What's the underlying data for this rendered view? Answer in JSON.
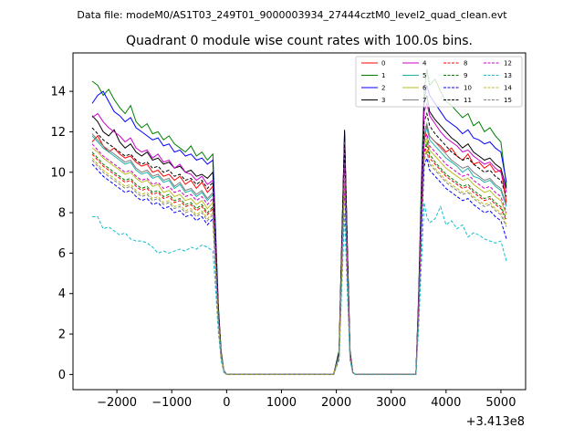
{
  "chart_data": {
    "type": "line",
    "suptitle": "Data file: modeM0/AS1T03_249T01_9000003934_27444cztM0_level2_quad_clean.evt",
    "title": "Quadrant 0 module wise count rates with 100.0s bins.",
    "xlabel": "",
    "ylabel": "",
    "x_offset_label": "+3.413e8",
    "xlim": [
      -2800,
      5450
    ],
    "ylim": [
      -0.75,
      15.9
    ],
    "x_ticks": [
      -2000,
      -1000,
      0,
      1000,
      2000,
      3000,
      4000,
      5000
    ],
    "x_tick_labels": [
      "−2000",
      "−1000",
      "0",
      "1000",
      "2000",
      "3000",
      "4000",
      "5000"
    ],
    "y_ticks": [
      0,
      2,
      4,
      6,
      8,
      10,
      12,
      14
    ],
    "y_tick_labels": [
      "0",
      "2",
      "4",
      "6",
      "8",
      "10",
      "12",
      "14"
    ],
    "legend_position": "upper-right",
    "x": [
      -2450,
      -2350,
      -2250,
      -2150,
      -2050,
      -1950,
      -1850,
      -1750,
      -1650,
      -1550,
      -1450,
      -1350,
      -1250,
      -1150,
      -1050,
      -950,
      -850,
      -750,
      -650,
      -550,
      -450,
      -350,
      -250,
      -200,
      -150,
      -100,
      -50,
      0,
      1950,
      2050,
      2100,
      2150,
      2200,
      2250,
      2300,
      2350,
      3450,
      3500,
      3550,
      3600,
      3650,
      3700,
      3800,
      3900,
      4000,
      4100,
      4200,
      4300,
      4400,
      4500,
      4600,
      4700,
      4800,
      4900,
      5000,
      5100
    ],
    "series": [
      {
        "name": "0",
        "color": "#ff0000",
        "dash": "solid",
        "values": [
          11.5,
          11.8,
          11.3,
          11.0,
          11.2,
          10.9,
          10.7,
          10.8,
          10.5,
          10.3,
          10.4,
          10.0,
          10.1,
          9.8,
          9.9,
          9.6,
          9.8,
          9.4,
          9.6,
          9.2,
          9.5,
          9.0,
          9.3,
          6.0,
          3.0,
          1.0,
          0.2,
          0.0,
          0.0,
          1.0,
          6.0,
          11.2,
          6.0,
          1.0,
          0.1,
          0.0,
          0.0,
          3.5,
          8.0,
          11.5,
          12.3,
          11.8,
          11.5,
          11.3,
          11.0,
          11.2,
          10.8,
          10.6,
          10.9,
          10.4,
          10.5,
          10.2,
          10.4,
          10.0,
          10.1,
          8.5
        ]
      },
      {
        "name": "1",
        "color": "#008000",
        "dash": "solid",
        "values": [
          14.5,
          14.3,
          13.8,
          14.1,
          13.6,
          13.2,
          12.9,
          13.3,
          12.5,
          12.2,
          12.4,
          11.9,
          12.0,
          11.6,
          11.8,
          11.4,
          11.2,
          11.0,
          11.3,
          10.8,
          11.0,
          10.6,
          10.9,
          7.0,
          3.4,
          1.2,
          0.2,
          0.0,
          0.0,
          1.2,
          6.8,
          11.8,
          6.5,
          1.2,
          0.1,
          0.0,
          0.0,
          4.0,
          9.5,
          14.0,
          15.1,
          14.3,
          14.6,
          14.0,
          13.5,
          13.3,
          13.0,
          12.7,
          12.9,
          12.3,
          12.5,
          12.0,
          12.2,
          11.8,
          11.5,
          9.3
        ]
      },
      {
        "name": "2",
        "color": "#0000ff",
        "dash": "solid",
        "values": [
          13.4,
          13.8,
          14.0,
          13.5,
          13.0,
          12.8,
          12.5,
          12.7,
          12.2,
          12.0,
          11.8,
          11.6,
          11.7,
          11.3,
          11.4,
          11.0,
          11.1,
          10.8,
          10.9,
          10.6,
          10.7,
          10.4,
          10.6,
          7.0,
          3.3,
          1.1,
          0.2,
          0.0,
          0.0,
          1.1,
          6.5,
          12.0,
          6.3,
          1.1,
          0.1,
          0.0,
          0.0,
          3.8,
          9.0,
          13.6,
          14.3,
          13.8,
          13.4,
          13.0,
          12.6,
          12.4,
          12.2,
          11.9,
          12.1,
          11.7,
          11.6,
          11.4,
          11.5,
          11.2,
          11.0,
          9.5
        ]
      },
      {
        "name": "3",
        "color": "#000000",
        "dash": "solid",
        "values": [
          12.8,
          12.5,
          12.0,
          11.8,
          12.1,
          11.5,
          11.2,
          11.4,
          11.0,
          10.8,
          11.0,
          10.6,
          10.7,
          10.4,
          10.5,
          10.2,
          10.3,
          10.0,
          10.1,
          9.8,
          9.9,
          9.7,
          10.0,
          6.5,
          3.2,
          1.0,
          0.2,
          0.0,
          0.0,
          1.1,
          6.6,
          12.1,
          6.4,
          1.1,
          0.1,
          0.0,
          0.0,
          3.7,
          8.8,
          13.4,
          13.8,
          13.0,
          12.6,
          12.3,
          12.0,
          11.7,
          11.5,
          11.2,
          11.4,
          11.0,
          10.8,
          10.6,
          10.7,
          10.4,
          10.2,
          9.2
        ]
      },
      {
        "name": "4",
        "color": "#cc00cc",
        "dash": "solid",
        "values": [
          12.7,
          12.9,
          12.5,
          12.2,
          12.0,
          11.8,
          11.5,
          11.7,
          11.2,
          11.0,
          11.1,
          10.7,
          10.9,
          10.5,
          10.6,
          10.2,
          10.4,
          10.0,
          9.9,
          9.6,
          9.8,
          9.4,
          9.6,
          6.3,
          3.1,
          1.0,
          0.2,
          0.0,
          0.0,
          1.0,
          6.2,
          11.5,
          6.0,
          1.0,
          0.1,
          0.0,
          0.0,
          3.6,
          8.6,
          13.0,
          13.4,
          12.8,
          12.4,
          12.0,
          11.7,
          11.5,
          11.3,
          11.0,
          11.1,
          10.8,
          10.6,
          10.4,
          10.5,
          10.2,
          10.0,
          9.0
        ]
      },
      {
        "name": "5",
        "color": "#20b2aa",
        "dash": "solid",
        "values": [
          11.8,
          11.5,
          11.2,
          11.0,
          10.8,
          10.6,
          10.4,
          10.5,
          10.1,
          9.9,
          10.0,
          9.7,
          9.8,
          9.5,
          9.6,
          9.2,
          9.4,
          9.0,
          9.1,
          8.8,
          9.0,
          8.6,
          8.9,
          5.9,
          2.9,
          0.9,
          0.2,
          0.0,
          0.0,
          0.9,
          5.8,
          10.8,
          5.7,
          0.9,
          0.1,
          0.0,
          0.0,
          3.3,
          7.9,
          11.8,
          12.2,
          11.6,
          11.3,
          11.0,
          10.7,
          10.5,
          10.3,
          10.0,
          10.2,
          9.8,
          9.7,
          9.5,
          9.6,
          9.3,
          9.1,
          8.3
        ]
      },
      {
        "name": "6",
        "color": "#bcbd22",
        "dash": "solid",
        "values": [
          11.2,
          11.0,
          10.7,
          10.5,
          10.3,
          10.1,
          9.9,
          10.0,
          9.7,
          9.5,
          9.6,
          9.3,
          9.4,
          9.0,
          9.1,
          8.8,
          8.9,
          8.6,
          8.7,
          8.4,
          8.6,
          8.2,
          8.5,
          5.6,
          2.8,
          0.9,
          0.2,
          0.0,
          0.0,
          0.9,
          5.5,
          10.4,
          5.4,
          0.9,
          0.1,
          0.0,
          0.0,
          3.2,
          7.6,
          11.3,
          11.7,
          11.1,
          10.8,
          10.5,
          10.2,
          10.0,
          9.8,
          9.6,
          9.7,
          9.4,
          9.2,
          9.0,
          9.1,
          8.8,
          8.6,
          7.9
        ]
      },
      {
        "name": "7",
        "color": "#7f7f7f",
        "dash": "solid",
        "values": [
          11.9,
          11.6,
          11.3,
          11.1,
          10.9,
          10.7,
          10.5,
          10.6,
          10.2,
          10.0,
          10.1,
          9.8,
          9.9,
          9.6,
          9.7,
          9.3,
          9.5,
          9.1,
          9.2,
          8.9,
          9.1,
          8.7,
          9.0,
          6.0,
          3.0,
          1.0,
          0.2,
          0.0,
          0.0,
          1.0,
          5.9,
          11.0,
          5.8,
          1.0,
          0.1,
          0.0,
          0.0,
          3.4,
          8.0,
          12.0,
          12.4,
          11.8,
          11.5,
          11.2,
          10.9,
          10.6,
          10.4,
          10.2,
          10.3,
          10.0,
          9.8,
          9.6,
          9.7,
          9.4,
          9.2,
          8.4
        ]
      },
      {
        "name": "8",
        "color": "#ff0000",
        "dash": "dashed",
        "values": [
          10.9,
          10.6,
          10.3,
          10.1,
          9.9,
          9.7,
          9.5,
          9.6,
          9.3,
          9.1,
          9.2,
          8.9,
          9.0,
          8.7,
          8.8,
          8.5,
          8.6,
          8.3,
          8.4,
          8.1,
          8.3,
          7.9,
          8.2,
          5.4,
          2.7,
          0.9,
          0.2,
          0.0,
          0.0,
          0.9,
          5.3,
          10.0,
          5.2,
          0.9,
          0.1,
          0.0,
          0.0,
          3.1,
          7.3,
          10.9,
          11.3,
          10.7,
          10.4,
          10.1,
          9.8,
          9.6,
          9.4,
          9.2,
          9.3,
          9.0,
          8.8,
          8.6,
          8.7,
          8.4,
          8.2,
          7.6
        ]
      },
      {
        "name": "9",
        "color": "#008000",
        "dash": "dashed",
        "values": [
          11.0,
          10.7,
          10.4,
          10.2,
          10.0,
          9.8,
          9.6,
          9.7,
          9.4,
          9.2,
          9.3,
          9.0,
          9.1,
          8.8,
          8.9,
          8.6,
          8.7,
          8.4,
          8.5,
          8.2,
          8.4,
          8.0,
          8.3,
          5.5,
          2.7,
          0.9,
          0.2,
          0.0,
          0.0,
          0.9,
          5.4,
          10.2,
          5.3,
          0.9,
          0.1,
          0.0,
          0.0,
          3.1,
          7.4,
          11.0,
          11.5,
          10.9,
          10.5,
          10.2,
          9.9,
          9.7,
          9.5,
          9.3,
          9.4,
          9.1,
          8.9,
          8.7,
          8.8,
          8.5,
          8.3,
          7.7
        ]
      },
      {
        "name": "10",
        "color": "#0000ff",
        "dash": "dashed",
        "values": [
          10.4,
          10.1,
          9.8,
          9.6,
          9.4,
          9.2,
          9.0,
          9.1,
          8.8,
          8.6,
          8.7,
          8.4,
          8.5,
          8.2,
          8.3,
          8.0,
          8.1,
          7.8,
          7.9,
          7.6,
          7.8,
          7.4,
          7.7,
          5.1,
          2.5,
          0.8,
          0.2,
          0.0,
          0.0,
          0.8,
          5.0,
          9.5,
          4.9,
          0.8,
          0.1,
          0.0,
          0.0,
          2.9,
          6.9,
          10.3,
          10.7,
          10.1,
          9.8,
          9.5,
          9.2,
          9.0,
          8.8,
          8.6,
          8.7,
          8.4,
          8.2,
          8.0,
          8.1,
          7.8,
          7.6,
          6.7
        ]
      },
      {
        "name": "11",
        "color": "#000000",
        "dash": "dashed",
        "values": [
          12.2,
          11.9,
          11.6,
          11.4,
          11.2,
          11.0,
          10.8,
          10.9,
          10.6,
          10.4,
          10.5,
          10.2,
          10.3,
          10.0,
          10.1,
          9.8,
          9.9,
          9.6,
          9.7,
          9.4,
          9.6,
          9.2,
          9.5,
          6.2,
          3.1,
          1.0,
          0.2,
          0.0,
          0.0,
          1.0,
          6.1,
          11.4,
          6.0,
          1.0,
          0.1,
          0.0,
          0.0,
          3.5,
          8.3,
          12.5,
          12.9,
          12.3,
          11.9,
          11.6,
          11.3,
          11.0,
          10.8,
          10.6,
          10.7,
          10.4,
          10.2,
          10.0,
          10.1,
          9.8,
          9.6,
          8.8
        ]
      },
      {
        "name": "12",
        "color": "#cc00cc",
        "dash": "dashed",
        "values": [
          11.4,
          11.1,
          10.8,
          10.6,
          10.4,
          10.2,
          10.0,
          10.1,
          9.8,
          9.6,
          9.7,
          9.4,
          9.5,
          9.2,
          9.3,
          9.0,
          9.1,
          8.8,
          8.9,
          8.6,
          8.8,
          8.4,
          8.7,
          5.7,
          2.8,
          0.9,
          0.2,
          0.0,
          0.0,
          0.9,
          5.6,
          10.5,
          5.5,
          0.9,
          0.1,
          0.0,
          0.0,
          3.3,
          7.7,
          11.5,
          11.9,
          11.3,
          11.0,
          10.7,
          10.4,
          10.2,
          10.0,
          9.8,
          9.9,
          9.6,
          9.4,
          9.2,
          9.3,
          9.0,
          8.8,
          8.0
        ]
      },
      {
        "name": "13",
        "color": "#17becf",
        "dash": "dashed",
        "values": [
          7.8,
          7.8,
          7.2,
          7.3,
          7.1,
          6.9,
          7.0,
          6.7,
          6.6,
          6.6,
          6.5,
          6.3,
          6.0,
          6.1,
          6.0,
          6.1,
          6.2,
          6.1,
          6.3,
          6.2,
          6.4,
          6.3,
          6.1,
          4.2,
          2.1,
          0.7,
          0.1,
          0.0,
          0.0,
          0.7,
          4.3,
          8.0,
          4.1,
          0.7,
          0.1,
          0.0,
          0.0,
          2.3,
          5.5,
          8.5,
          7.8,
          7.5,
          7.7,
          8.3,
          7.4,
          7.6,
          7.2,
          7.4,
          6.8,
          7.0,
          6.9,
          6.7,
          6.6,
          6.5,
          6.6,
          5.6
        ]
      },
      {
        "name": "14",
        "color": "#bcbd22",
        "dash": "dashed",
        "values": [
          10.7,
          10.4,
          10.1,
          9.9,
          9.7,
          9.5,
          9.3,
          9.4,
          9.1,
          8.9,
          9.0,
          8.7,
          8.8,
          8.5,
          8.6,
          8.3,
          8.4,
          8.1,
          8.2,
          7.9,
          8.1,
          7.7,
          8.0,
          5.3,
          2.6,
          0.9,
          0.2,
          0.0,
          0.0,
          0.9,
          5.2,
          9.8,
          5.1,
          0.9,
          0.1,
          0.0,
          0.0,
          3.0,
          7.2,
          10.7,
          11.1,
          10.5,
          10.2,
          9.9,
          9.6,
          9.4,
          9.2,
          9.0,
          9.1,
          8.8,
          8.6,
          8.4,
          8.5,
          8.2,
          8.0,
          7.4
        ]
      },
      {
        "name": "15",
        "color": "#7f7f7f",
        "dash": "dashed",
        "values": [
          10.6,
          10.3,
          10.0,
          9.8,
          9.6,
          9.4,
          9.2,
          9.3,
          9.0,
          8.8,
          8.9,
          8.6,
          8.7,
          8.4,
          8.5,
          8.2,
          8.3,
          8.0,
          8.1,
          7.8,
          8.0,
          7.6,
          7.9,
          5.2,
          2.6,
          0.9,
          0.2,
          0.0,
          0.0,
          0.9,
          5.1,
          9.6,
          5.0,
          0.9,
          0.1,
          0.0,
          0.0,
          3.0,
          7.1,
          10.6,
          11.0,
          10.4,
          10.1,
          9.8,
          9.5,
          9.3,
          9.1,
          8.9,
          9.0,
          8.7,
          8.5,
          8.3,
          8.4,
          8.1,
          7.9,
          7.3
        ]
      }
    ]
  }
}
